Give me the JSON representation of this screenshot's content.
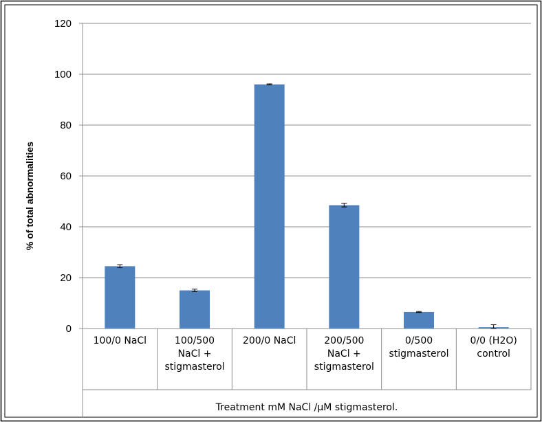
{
  "chart_data": {
    "type": "bar",
    "title": "",
    "xlabel": "Treatment mM NaCl /µM stigmasterol.",
    "ylabel": "% of total abnormalities",
    "ylim": [
      0,
      120
    ],
    "yticks": [
      0,
      20,
      40,
      60,
      80,
      100,
      120
    ],
    "grid": true,
    "legend": "none",
    "bar_color": "#4f81bd",
    "categories": [
      [
        "100/0 NaCl"
      ],
      [
        "100/500",
        "NaCl +",
        "stigmasterol"
      ],
      [
        "200/0 NaCl"
      ],
      [
        "200/500",
        "NaCl +",
        "stigmasterol"
      ],
      [
        "0/500",
        "stigmasterol"
      ],
      [
        "0/0 (H2O)",
        "control"
      ]
    ],
    "values": [
      24.5,
      15.0,
      96.0,
      48.5,
      6.5,
      0.5
    ],
    "errors": [
      0.6,
      0.5,
      0.2,
      0.7,
      0.2,
      1.0
    ]
  }
}
